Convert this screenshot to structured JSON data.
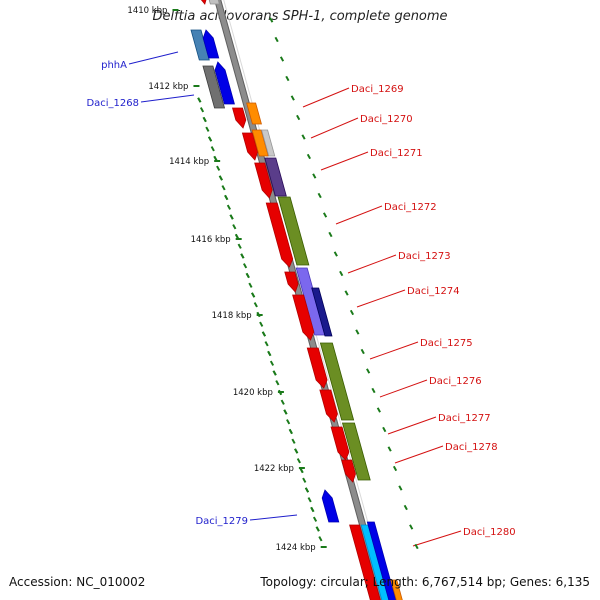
{
  "title": "Delftia acidovorans SPH-1, complete genome",
  "footer": {
    "accession": "Accession: NC_010002",
    "stats": "Topology: circular; Length: 6,767,514 bp; Genes: 6,135"
  },
  "kbp_labels": [
    {
      "text": "1410 kbp",
      "pos": 1410
    },
    {
      "text": "1412 kbp",
      "pos": 1412
    },
    {
      "text": "1414 kbp",
      "pos": 1414
    },
    {
      "text": "1416 kbp",
      "pos": 1416
    },
    {
      "text": "1418 kbp",
      "pos": 1418
    },
    {
      "text": "1420 kbp",
      "pos": 1420
    },
    {
      "text": "1422 kbp",
      "pos": 1422
    },
    {
      "text": "1424 kbp",
      "pos": 1424
    }
  ],
  "gene_labels": [
    {
      "text": "phhA",
      "color": "#1f1fcc",
      "side": "left"
    },
    {
      "text": "Daci_1268",
      "color": "#1f1fcc",
      "side": "left"
    },
    {
      "text": "Daci_1269",
      "color": "#d41111",
      "side": "right"
    },
    {
      "text": "Daci_1270",
      "color": "#d41111",
      "side": "right"
    },
    {
      "text": "Daci_1271",
      "color": "#d41111",
      "side": "right"
    },
    {
      "text": "Daci_1272",
      "color": "#d41111",
      "side": "right"
    },
    {
      "text": "Daci_1273",
      "color": "#d41111",
      "side": "right"
    },
    {
      "text": "Daci_1274",
      "color": "#d41111",
      "side": "right"
    },
    {
      "text": "Daci_1275",
      "color": "#d41111",
      "side": "right"
    },
    {
      "text": "Daci_1276",
      "color": "#d41111",
      "side": "right"
    },
    {
      "text": "Daci_1277",
      "color": "#d41111",
      "side": "right"
    },
    {
      "text": "Daci_1278",
      "color": "#d41111",
      "side": "right"
    },
    {
      "text": "Daci_1279",
      "color": "#1f1fcc",
      "side": "left"
    },
    {
      "text": "Daci_1280",
      "color": "#d41111",
      "side": "right"
    }
  ],
  "colors": {
    "backbone": "#8c8c8c",
    "tick": "#1a7a1a",
    "forward_gene": "#e60000",
    "reverse_gene": "#0000e6",
    "olive": "#6b8e23",
    "orange": "#ff8c00",
    "purple": "#5a3d8a",
    "lavender": "#7b68ee",
    "navy": "#1a1a8c",
    "grey": "#707070",
    "steel": "#4682b4",
    "cyan": "#00bfff"
  }
}
